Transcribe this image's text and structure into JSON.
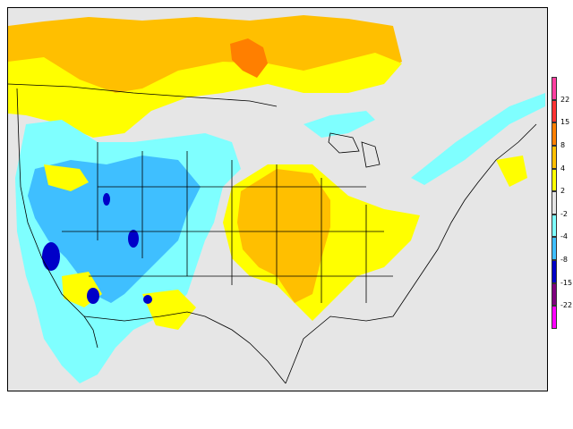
{
  "legend": {
    "title": "",
    "bins": [
      {
        "color": "#ff3fa0",
        "label": "22"
      },
      {
        "color": "#ff3333",
        "label": "15"
      },
      {
        "color": "#ff7f00",
        "label": "8"
      },
      {
        "color": "#ffbf00",
        "label": "4"
      },
      {
        "color": "#ffff00",
        "label": "2"
      },
      {
        "color": "#e6e6e6",
        "label": "-2"
      },
      {
        "color": "#7fffff",
        "label": "-4"
      },
      {
        "color": "#3fbfff",
        "label": "-8"
      },
      {
        "color": "#0000c8",
        "label": "-15"
      },
      {
        "color": "#7f007f",
        "label": "-22"
      },
      {
        "color": "#ff00ff",
        "label": ""
      }
    ]
  },
  "palette": {
    "background": "#e6e6e6",
    "orange": "#ffbf00",
    "deep_orange": "#ff7f00",
    "yellow": "#ffff00",
    "cyan": "#7fffff",
    "blue": "#3fbfff",
    "navy": "#0000c8"
  }
}
